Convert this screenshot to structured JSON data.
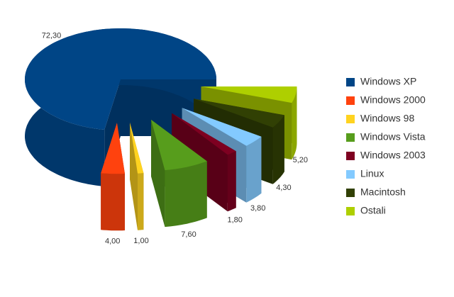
{
  "chart_data": {
    "type": "pie3d",
    "categories": [
      "Windows XP",
      "Windows 2000",
      "Windows 98",
      "Windows Vista",
      "Windows 2003",
      "Linux",
      "Macintosh",
      "Ostali"
    ],
    "values": [
      72.3,
      4.0,
      1.0,
      7.6,
      1.8,
      3.8,
      4.3,
      5.2
    ],
    "value_labels": [
      "72,30",
      "4,00",
      "1,00",
      "7,60",
      "1,80",
      "3,80",
      "4,30",
      "5,20"
    ],
    "colors": [
      "#004586",
      "#ff420e",
      "#ffd320",
      "#579d1c",
      "#7e0021",
      "#83caff",
      "#314004",
      "#aecf00"
    ],
    "legend": "right"
  }
}
